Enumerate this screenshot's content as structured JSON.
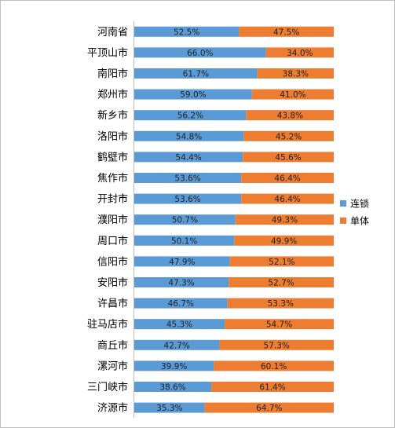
{
  "chart_data": {
    "type": "bar",
    "orientation": "horizontal",
    "stacked": "percent",
    "categories": [
      "河南省",
      "平顶山市",
      "南阳市",
      "郑州市",
      "新乡市",
      "洛阳市",
      "鹤壁市",
      "焦作市",
      "开封市",
      "濮阳市",
      "周口市",
      "信阳市",
      "安阳市",
      "许昌市",
      "驻马店市",
      "商丘市",
      "漯河市",
      "三门峡市",
      "济源市"
    ],
    "series": [
      {
        "name": "连锁",
        "color": "#5b9bd5",
        "values": [
          52.5,
          66.0,
          61.7,
          59.0,
          56.2,
          54.8,
          54.4,
          53.6,
          53.6,
          50.7,
          50.1,
          47.9,
          47.3,
          46.7,
          45.3,
          42.7,
          39.9,
          38.6,
          35.3
        ],
        "labels": [
          "52.5%",
          "66.0%",
          "61.7%",
          "59.0%",
          "56.2%",
          "54.8%",
          "54.4%",
          "53.6%",
          "53.6%",
          "50.7%",
          "50.1%",
          "47.9%",
          "47.3%",
          "46.7%",
          "45.3%",
          "42.7%",
          "39.9%",
          "38.6%",
          "35.3%"
        ]
      },
      {
        "name": "单体",
        "color": "#ed7d31",
        "values": [
          47.5,
          34.0,
          38.3,
          41.0,
          43.8,
          45.2,
          45.6,
          46.4,
          46.4,
          49.3,
          49.9,
          52.1,
          52.7,
          53.3,
          54.7,
          57.3,
          60.1,
          61.4,
          64.7
        ],
        "labels": [
          "47.5%",
          "34.0%",
          "38.3%",
          "41.0%",
          "43.8%",
          "45.2%",
          "45.6%",
          "46.4%",
          "46.4%",
          "49.3%",
          "49.9%",
          "52.1%",
          "52.7%",
          "53.3%",
          "54.7%",
          "57.3%",
          "60.1%",
          "61.4%",
          "64.7%"
        ]
      }
    ],
    "xlim": [
      0,
      100
    ],
    "legend": "right",
    "grid": false
  }
}
